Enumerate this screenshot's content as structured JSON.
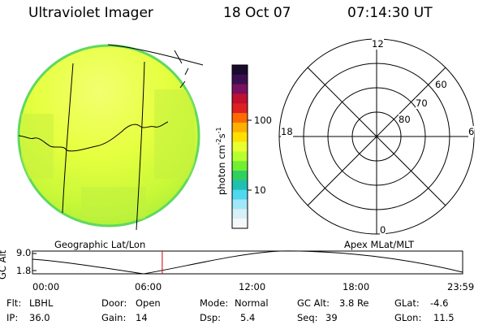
{
  "header": {
    "instrument": "Ultraviolet Imager",
    "date": "18 Oct 07",
    "time": "07:14:30 UT"
  },
  "colorbar": {
    "label": "photon cm",
    "label_sup1": "-2",
    "label_mid": "s",
    "label_sup2": "-1",
    "ticks": [
      "100",
      "10"
    ],
    "colors": [
      "#1a0a2e",
      "#3b0f4f",
      "#7a1060",
      "#c01030",
      "#e02020",
      "#ff6a00",
      "#ffb000",
      "#ffe000",
      "#e8ff30",
      "#b8ff30",
      "#70f030",
      "#30d060",
      "#20c0b0",
      "#50d8f0",
      "#a0e8f8",
      "#d8f0f8",
      "#f4f8fc"
    ]
  },
  "left_panel": {
    "caption": "Geographic Lat/Lon"
  },
  "right_panel": {
    "caption": "Apex MLat/MLT",
    "mlt_labels": {
      "top": "12",
      "bottom": "0",
      "left": "18",
      "right": "6"
    },
    "lat_labels": [
      "60",
      "70",
      "80"
    ]
  },
  "altitude_plot": {
    "ylabel": "GC Alt",
    "yticks": [
      "9.0",
      "1.8"
    ],
    "xticks": [
      "00:00",
      "06:00",
      "12:00",
      "18:00",
      "23:59"
    ],
    "current_time_fraction": 0.3017,
    "marker_color": "#cc0000"
  },
  "status": {
    "filter_label": "Flt:",
    "filter_value": "LBHL",
    "ip_label": "IP:",
    "ip_value": "36.0",
    "door_label": "Door:",
    "door_value": "Open",
    "gain_label": "Gain:",
    "gain_value": "14",
    "mode_label": "Mode:",
    "mode_value": "Normal",
    "dsp_label": "Dsp:",
    "dsp_value": "5.4",
    "gcalt_label": "GC Alt:",
    "gcalt_value": "3.8 Re",
    "seq_label": "Seq:",
    "seq_value": "39",
    "glat_label": "GLat:",
    "glat_value": "-4.6",
    "glon_label": "GLon:",
    "glon_value": "11.5"
  }
}
